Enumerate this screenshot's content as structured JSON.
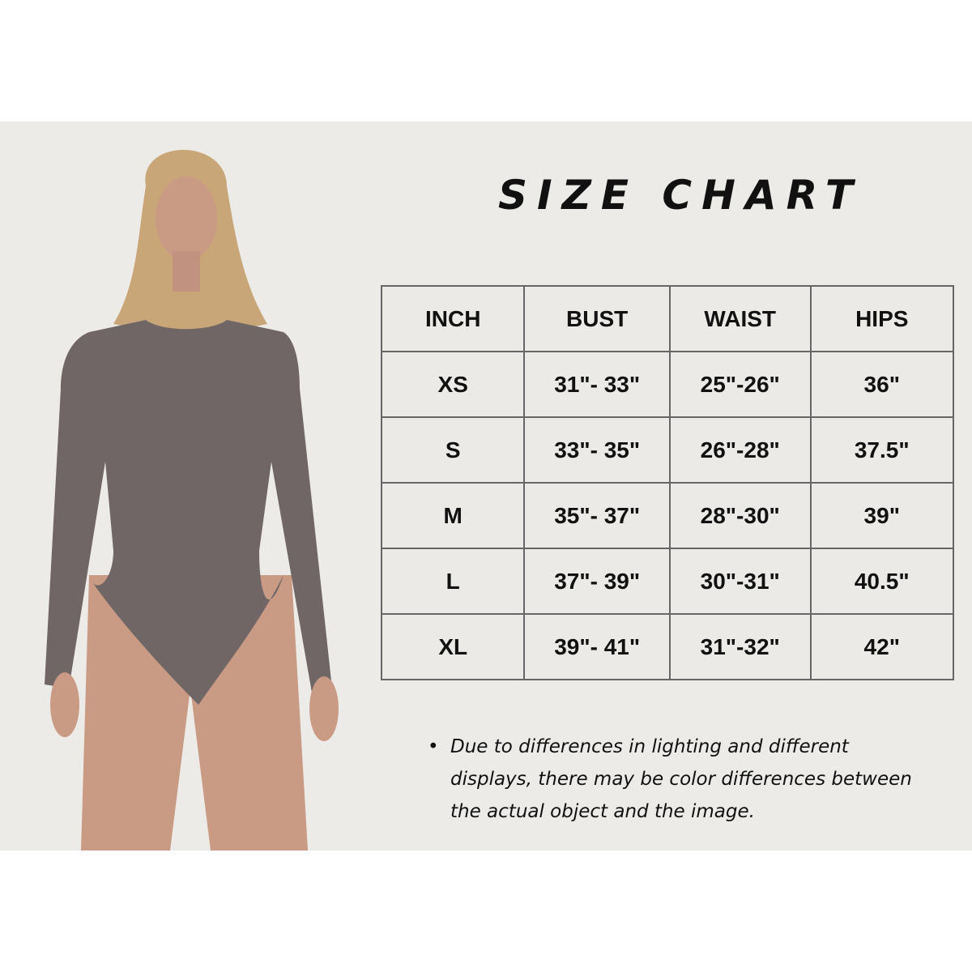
{
  "title": "SIZE CHART",
  "colors": {
    "background": "#ecebe8",
    "bodysuit": "#6f6665",
    "skin": "#c99a84",
    "hair": "#c9a678"
  },
  "model_image": {
    "icon": "model-in-bodysuit-photo"
  },
  "table": {
    "headers": [
      "INCH",
      "BUST",
      "WAIST",
      "HIPS"
    ],
    "rows": [
      [
        "XS",
        "31\"- 33\"",
        "25\"-26\"",
        "36\""
      ],
      [
        "S",
        "33\"- 35\"",
        "26\"-28\"",
        "37.5\""
      ],
      [
        "M",
        "35\"- 37\"",
        "28\"-30\"",
        "39\""
      ],
      [
        "L",
        "37\"- 39\"",
        "30\"-31\"",
        "40.5\""
      ],
      [
        "XL",
        "39\"- 41\"",
        "31\"-32\"",
        "42\""
      ]
    ]
  },
  "note": {
    "bullet": "•",
    "text": "Due to differences in lighting and different displays, there may be color differences between the actual object and the image."
  }
}
